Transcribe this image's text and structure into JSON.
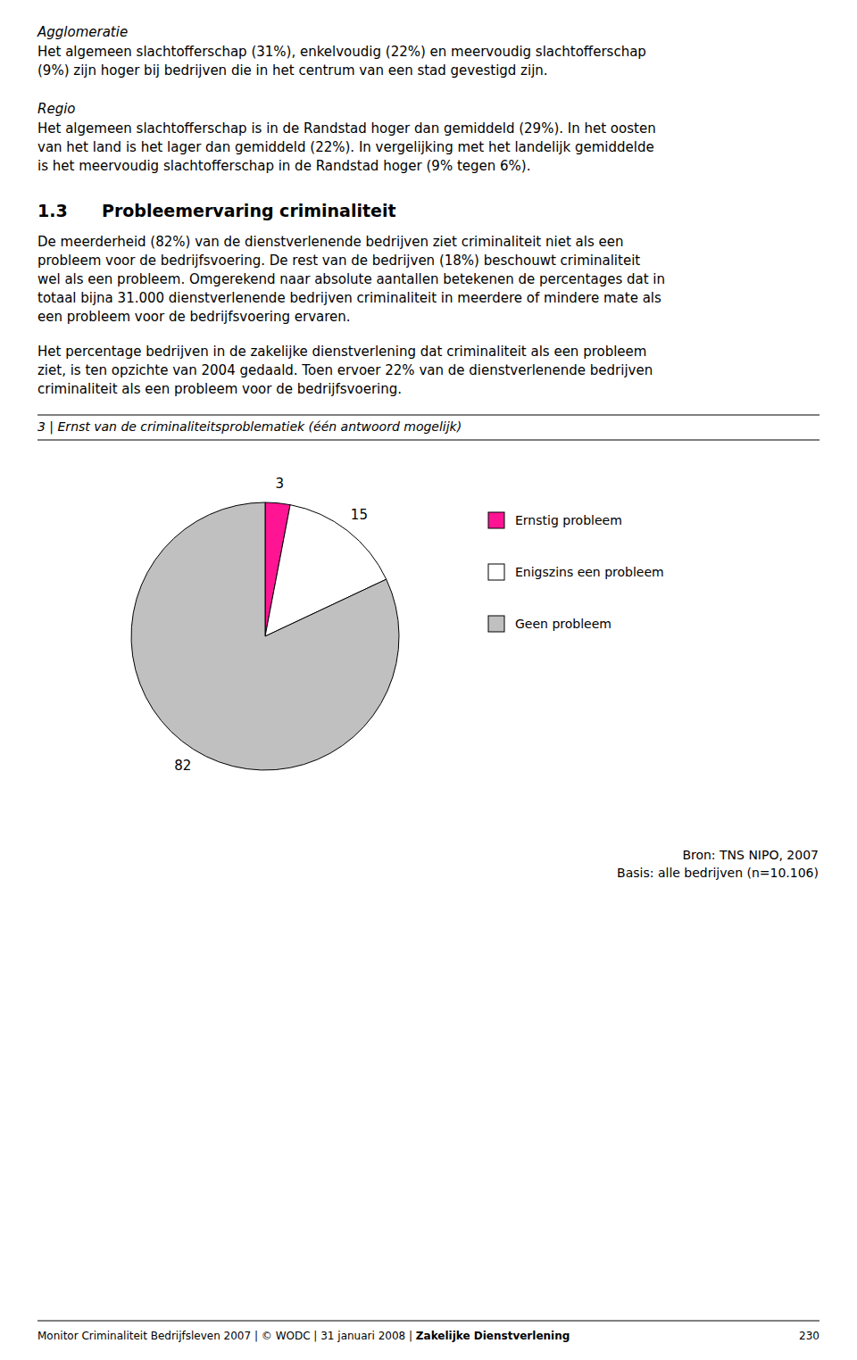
{
  "chart_data": {
    "type": "pie",
    "title": "3 | Ernst van de criminaliteitsproblematiek (één antwoord mogelijk)",
    "categories": [
      "Ernstig probleem",
      "Enigszins een probleem",
      "Geen probleem"
    ],
    "values": [
      3,
      15,
      82
    ],
    "colors": [
      "#FF1493",
      "#ffffff",
      "#C0C0C0"
    ],
    "data_labels": true,
    "legend": "right",
    "annotations": [
      "Bron: TNS NIPO, 2007",
      "Basis: alle bedrijven (n=10.106)"
    ]
  },
  "page": {
    "blocks": [
      {
        "heading": "Agglomeratie",
        "lines": [
          "Het algemeen slachtofferschap (31%), enkelvoudig (22%) en meervoudig slachtofferschap",
          "(9%) zijn hoger bij bedrijven die in het centrum van een stad gevestigd zijn."
        ]
      },
      {
        "heading": "Regio",
        "lines": [
          "Het algemeen slachtofferschap is in de Randstad hoger dan gemiddeld (29%). In het oosten",
          "van het land is het lager dan gemiddeld (22%). In vergelijking met het landelijk gemiddelde",
          "is het meervoudig slachtofferschap in de Randstad hoger (9% tegen 6%)."
        ]
      }
    ],
    "section_number": "1.3",
    "section_title": "Probleemervaring criminaliteit",
    "section_paragraphs": [
      [
        "De meerderheid (82%) van de dienstverlenende bedrijven ziet criminaliteit niet als een",
        "probleem voor de bedrijfsvoering. De rest van de bedrijven (18%) beschouwt criminaliteit",
        "wel als een probleem. Omgerekend naar absolute aantallen betekenen de percentages dat in",
        "totaal bijna 31.000 dienstverlenende bedrijven criminaliteit in meerdere of mindere mate als",
        "een probleem voor de bedrijfsvoering ervaren."
      ],
      [
        "Het percentage bedrijven in de zakelijke dienstverlening dat criminaliteit als een probleem",
        "ziet, is ten opzichte van 2004 gedaald. Toen ervoer 22% van de dienstverlenende bedrijven",
        "criminaliteit als een probleem voor de bedrijfsvoering."
      ]
    ],
    "footer": {
      "text": "Monitor Criminaliteit Bedrijfsleven 2007 | © WODC | 31 januari 2008 | ",
      "bold": "Zakelijke Dienstverlening",
      "page": "230"
    }
  }
}
